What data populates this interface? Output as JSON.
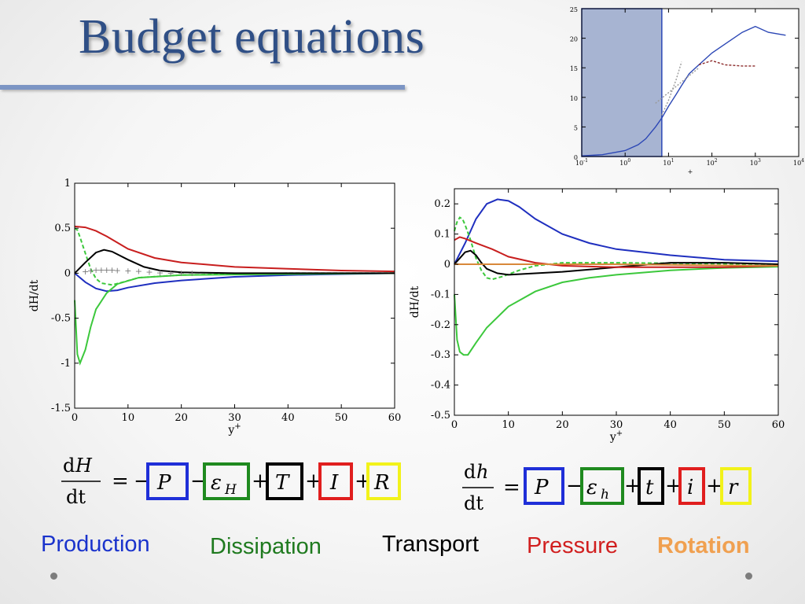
{
  "slide": {
    "title": "Budget equations"
  },
  "equations": {
    "left": {
      "num_d": "d",
      "num_var": "H",
      "den": "dt",
      "eq": "=",
      "terms": [
        "P",
        "εH",
        "T",
        "I",
        "R"
      ],
      "sub": "H",
      "ops": [
        "−",
        "−",
        "+",
        "+",
        "+"
      ]
    },
    "right": {
      "num_d": "d",
      "num_var": "h",
      "den": "dt",
      "eq": "=",
      "terms": [
        "P",
        "εh",
        "t",
        "i",
        "r"
      ],
      "sub": "h",
      "ops": [
        "",
        "−",
        "+",
        "+",
        "+"
      ]
    }
  },
  "legend": [
    {
      "label": "Production",
      "color": "#1a33cc"
    },
    {
      "label": "Dissipation",
      "color": "#1f7a1f"
    },
    {
      "label": "Transport",
      "color": "#000000"
    },
    {
      "label": "Pressure",
      "color": "#d11f1f"
    },
    {
      "label": "Rotation",
      "color": "#f0a050"
    }
  ],
  "colors": {
    "production": "#1f2fbf",
    "dissipation": "#3cc83c",
    "transport": "#000000",
    "pressure": "#c81e1e",
    "rotation": "#d8883a",
    "box_yellow": "#f2f21a"
  },
  "chart_data": [
    {
      "type": "line",
      "xlabel": "y+",
      "ylabel": "dH/dt",
      "xlim": [
        0,
        60
      ],
      "ylim": [
        -1.5,
        1
      ],
      "xticks": [
        "0",
        "10",
        "20",
        "30",
        "40",
        "50",
        "60"
      ],
      "yticks": [
        "-1.5",
        "-1",
        "-0.5",
        "0",
        "0.5",
        "1"
      ],
      "series": [
        {
          "key": "production",
          "color": "#1f2fbf",
          "dash": "",
          "points": [
            [
              0,
              0
            ],
            [
              2,
              -0.1
            ],
            [
              4,
              -0.17
            ],
            [
              6,
              -0.2
            ],
            [
              8,
              -0.19
            ],
            [
              10,
              -0.16
            ],
            [
              15,
              -0.11
            ],
            [
              20,
              -0.08
            ],
            [
              30,
              -0.04
            ],
            [
              40,
              -0.02
            ],
            [
              50,
              -0.01
            ],
            [
              60,
              0
            ]
          ]
        },
        {
          "key": "dissipation",
          "color": "#3cc83c",
          "dash": "",
          "points": [
            [
              0,
              -0.3
            ],
            [
              0.5,
              -0.9
            ],
            [
              1,
              -1.0
            ],
            [
              2,
              -0.85
            ],
            [
              3,
              -0.6
            ],
            [
              4,
              -0.4
            ],
            [
              6,
              -0.22
            ],
            [
              8,
              -0.12
            ],
            [
              12,
              -0.05
            ],
            [
              20,
              -0.02
            ],
            [
              40,
              -0.01
            ],
            [
              60,
              0
            ]
          ]
        },
        {
          "key": "dissipation-dashed",
          "color": "#3cc83c",
          "dash": "5,3",
          "points": [
            [
              0,
              0.5
            ],
            [
              0.5,
              0.48
            ],
            [
              1,
              0.4
            ],
            [
              2,
              0.22
            ],
            [
              3,
              0.05
            ],
            [
              4,
              -0.06
            ],
            [
              5,
              -0.11
            ],
            [
              7,
              -0.13
            ],
            [
              9,
              -0.1
            ],
            [
              12,
              -0.05
            ],
            [
              20,
              -0.02
            ],
            [
              40,
              0
            ],
            [
              60,
              0
            ]
          ]
        },
        {
          "key": "transport",
          "color": "#000000",
          "dash": "",
          "points": [
            [
              0,
              0
            ],
            [
              2,
              0.12
            ],
            [
              4,
              0.23
            ],
            [
              5.5,
              0.26
            ],
            [
              7,
              0.24
            ],
            [
              10,
              0.15
            ],
            [
              13,
              0.07
            ],
            [
              16,
              0.03
            ],
            [
              20,
              0.01
            ],
            [
              30,
              0
            ],
            [
              60,
              0
            ]
          ]
        },
        {
          "key": "pressure",
          "color": "#c81e1e",
          "dash": "",
          "points": [
            [
              0,
              0.52
            ],
            [
              2,
              0.51
            ],
            [
              4,
              0.47
            ],
            [
              6,
              0.41
            ],
            [
              8,
              0.34
            ],
            [
              10,
              0.27
            ],
            [
              15,
              0.17
            ],
            [
              20,
              0.12
            ],
            [
              30,
              0.07
            ],
            [
              40,
              0.05
            ],
            [
              50,
              0.03
            ],
            [
              60,
              0.02
            ]
          ]
        }
      ],
      "markers": {
        "symbol": "+",
        "color": "#7a7a7a",
        "points": [
          [
            2,
            0.02
          ],
          [
            3,
            0.03
          ],
          [
            4,
            0.04
          ],
          [
            5,
            0.04
          ],
          [
            6,
            0.04
          ],
          [
            7,
            0.04
          ],
          [
            8,
            0.035
          ],
          [
            10,
            0.03
          ],
          [
            12,
            0.025
          ],
          [
            14,
            0.015
          ],
          [
            16,
            0.01
          ],
          [
            18,
            0.005
          ],
          [
            20,
            0.003
          ],
          [
            22,
            0.002
          ]
        ]
      }
    },
    {
      "type": "line",
      "xlabel": "y+",
      "ylabel": "dH/dt",
      "xlim": [
        0,
        60
      ],
      "ylim": [
        -0.5,
        0.25
      ],
      "xticks": [
        "0",
        "10",
        "20",
        "30",
        "40",
        "50",
        "60"
      ],
      "yticks": [
        "-0.5",
        "-0.4",
        "-0.3",
        "-0.2",
        "-0.1",
        "0",
        "0.1",
        "0.2"
      ],
      "series": [
        {
          "key": "production",
          "color": "#1f2fbf",
          "dash": "",
          "points": [
            [
              0,
              0
            ],
            [
              2,
              0.07
            ],
            [
              4,
              0.15
            ],
            [
              6,
              0.2
            ],
            [
              8,
              0.215
            ],
            [
              10,
              0.21
            ],
            [
              12,
              0.19
            ],
            [
              15,
              0.15
            ],
            [
              20,
              0.1
            ],
            [
              25,
              0.07
            ],
            [
              30,
              0.05
            ],
            [
              40,
              0.03
            ],
            [
              50,
              0.015
            ],
            [
              60,
              0.01
            ]
          ]
        },
        {
          "key": "dissipation",
          "color": "#3cc83c",
          "dash": "",
          "points": [
            [
              0,
              -0.1
            ],
            [
              0.5,
              -0.25
            ],
            [
              1,
              -0.29
            ],
            [
              1.7,
              -0.3
            ],
            [
              2.5,
              -0.3
            ],
            [
              4,
              -0.26
            ],
            [
              6,
              -0.21
            ],
            [
              10,
              -0.14
            ],
            [
              15,
              -0.09
            ],
            [
              20,
              -0.06
            ],
            [
              25,
              -0.045
            ],
            [
              30,
              -0.035
            ],
            [
              40,
              -0.02
            ],
            [
              50,
              -0.012
            ],
            [
              60,
              -0.008
            ]
          ]
        },
        {
          "key": "dissipation-dashed",
          "color": "#3cc83c",
          "dash": "5,3",
          "points": [
            [
              0,
              0.11
            ],
            [
              0.5,
              0.14
            ],
            [
              1,
              0.155
            ],
            [
              1.5,
              0.15
            ],
            [
              2,
              0.13
            ],
            [
              3,
              0.08
            ],
            [
              4,
              0.02
            ],
            [
              5,
              -0.02
            ],
            [
              6,
              -0.045
            ],
            [
              7,
              -0.05
            ],
            [
              9,
              -0.04
            ],
            [
              12,
              -0.02
            ],
            [
              15,
              -0.005
            ],
            [
              20,
              0.005
            ],
            [
              30,
              0.005
            ],
            [
              60,
              0
            ]
          ]
        },
        {
          "key": "transport",
          "color": "#000000",
          "dash": "",
          "points": [
            [
              0,
              0
            ],
            [
              1,
              0.02
            ],
            [
              2,
              0.04
            ],
            [
              3,
              0.045
            ],
            [
              4,
              0.03
            ],
            [
              5,
              0.005
            ],
            [
              6,
              -0.015
            ],
            [
              8,
              -0.03
            ],
            [
              10,
              -0.035
            ],
            [
              15,
              -0.03
            ],
            [
              20,
              -0.025
            ],
            [
              30,
              -0.01
            ],
            [
              40,
              0.005
            ],
            [
              50,
              0.005
            ],
            [
              60,
              0
            ]
          ]
        },
        {
          "key": "pressure",
          "color": "#c81e1e",
          "dash": "",
          "points": [
            [
              0,
              0.08
            ],
            [
              1,
              0.09
            ],
            [
              2,
              0.085
            ],
            [
              4,
              0.07
            ],
            [
              7,
              0.05
            ],
            [
              10,
              0.025
            ],
            [
              15,
              0.005
            ],
            [
              20,
              -0.005
            ],
            [
              30,
              -0.01
            ],
            [
              40,
              -0.01
            ],
            [
              50,
              -0.01
            ],
            [
              60,
              -0.005
            ]
          ]
        },
        {
          "key": "rotation",
          "color": "#d8883a",
          "dash": "",
          "points": [
            [
              0,
              0
            ],
            [
              10,
              0
            ],
            [
              20,
              0
            ],
            [
              30,
              0
            ],
            [
              40,
              -0.002
            ],
            [
              50,
              -0.004
            ],
            [
              60,
              -0.005
            ]
          ]
        }
      ]
    },
    {
      "type": "line",
      "xscale": "log",
      "xlabel": "+",
      "ylabel": "",
      "xlim": [
        0.1,
        10000
      ],
      "ylim": [
        0,
        25
      ],
      "xticks": [
        "10-1",
        "100",
        "101",
        "102",
        "103",
        "104"
      ],
      "yticks": [
        "0",
        "5",
        "10",
        "15",
        "20",
        "25"
      ],
      "shaded_region": [
        0.1,
        7
      ],
      "series": [
        {
          "key": "profile",
          "color": "#2c47b5",
          "dash": "",
          "points": [
            [
              0.1,
              0.1
            ],
            [
              0.3,
              0.3
            ],
            [
              1,
              1
            ],
            [
              2,
              2
            ],
            [
              3,
              3
            ],
            [
              5,
              5
            ],
            [
              7,
              6.5
            ],
            [
              10,
              8.5
            ],
            [
              15,
              10.5
            ],
            [
              20,
              12
            ],
            [
              30,
              14
            ],
            [
              50,
              15.5
            ],
            [
              100,
              17.5
            ],
            [
              200,
              19
            ],
            [
              500,
              21
            ],
            [
              1000,
              22
            ],
            [
              2000,
              21
            ],
            [
              5000,
              20.5
            ]
          ]
        },
        {
          "key": "dashed-red",
          "color": "#8b2a2a",
          "dash": "3,2",
          "points": [
            [
              50,
              15.5
            ],
            [
              100,
              16.2
            ],
            [
              150,
              15.8
            ],
            [
              200,
              15.5
            ],
            [
              500,
              15.3
            ],
            [
              1000,
              15.3
            ]
          ]
        },
        {
          "key": "viscous-ref",
          "color": "#999999",
          "dash": "2,2",
          "points": [
            [
              7,
              7
            ],
            [
              10,
              9.5
            ],
            [
              15,
              13
            ],
            [
              20,
              16
            ]
          ]
        },
        {
          "key": "log-ref",
          "color": "#999999",
          "dash": "2,2",
          "points": [
            [
              5,
              9
            ],
            [
              10,
              10.8
            ],
            [
              20,
              12.6
            ],
            [
              50,
              15
            ]
          ]
        }
      ]
    }
  ]
}
